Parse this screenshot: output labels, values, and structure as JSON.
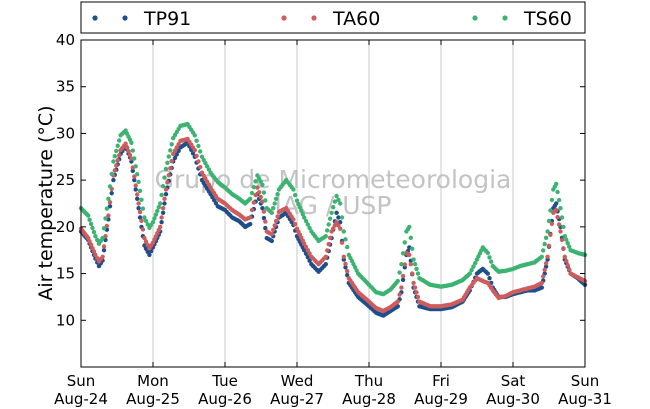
{
  "chart_data": {
    "type": "scatter",
    "ylabel": "Air temperature (°C)",
    "xlabel": "",
    "xlim": [
      0,
      7
    ],
    "ylim": [
      5,
      40
    ],
    "yticks": [
      10,
      15,
      20,
      25,
      30,
      35,
      40
    ],
    "xticks": [
      {
        "x": 0,
        "day": "Sun",
        "date": "Aug-24"
      },
      {
        "x": 1,
        "day": "Mon",
        "date": "Aug-25"
      },
      {
        "x": 2,
        "day": "Tue",
        "date": "Aug-26"
      },
      {
        "x": 3,
        "day": "Wed",
        "date": "Aug-27"
      },
      {
        "x": 4,
        "day": "Thu",
        "date": "Aug-28"
      },
      {
        "x": 5,
        "day": "Fri",
        "date": "Aug-29"
      },
      {
        "x": 6,
        "day": "Sat",
        "date": "Aug-30"
      },
      {
        "x": 7,
        "day": "Sun",
        "date": "Aug-31"
      }
    ],
    "grid": "vertical",
    "legend_position": "top",
    "watermark": [
      "Grupo de Micrometeorologia",
      "IAG / USP"
    ],
    "series": [
      {
        "name": "TP91",
        "color": "#1f4e8c",
        "points": [
          [
            0.0,
            19.5
          ],
          [
            0.1,
            18.6
          ],
          [
            0.2,
            16.6
          ],
          [
            0.25,
            15.8
          ],
          [
            0.3,
            16.4
          ],
          [
            0.38,
            20.8
          ],
          [
            0.45,
            25.0
          ],
          [
            0.55,
            27.8
          ],
          [
            0.62,
            28.7
          ],
          [
            0.7,
            27.0
          ],
          [
            0.8,
            22.0
          ],
          [
            0.88,
            18.0
          ],
          [
            0.95,
            17.0
          ],
          [
            1.0,
            17.8
          ],
          [
            1.1,
            19.5
          ],
          [
            1.18,
            23.5
          ],
          [
            1.28,
            27.0
          ],
          [
            1.38,
            28.5
          ],
          [
            1.48,
            29.0
          ],
          [
            1.58,
            27.5
          ],
          [
            1.68,
            25.0
          ],
          [
            1.8,
            23.5
          ],
          [
            1.9,
            22.2
          ],
          [
            2.0,
            21.8
          ],
          [
            2.1,
            21.0
          ],
          [
            2.2,
            20.6
          ],
          [
            2.28,
            20.0
          ],
          [
            2.35,
            20.3
          ],
          [
            2.45,
            23.5
          ],
          [
            2.52,
            22.0
          ],
          [
            2.58,
            18.8
          ],
          [
            2.65,
            18.5
          ],
          [
            2.75,
            21.0
          ],
          [
            2.85,
            21.5
          ],
          [
            2.95,
            20.2
          ],
          [
            3.0,
            19.0
          ],
          [
            3.1,
            17.5
          ],
          [
            3.2,
            16.0
          ],
          [
            3.3,
            15.2
          ],
          [
            3.4,
            16.0
          ],
          [
            3.48,
            18.8
          ],
          [
            3.55,
            21.5
          ],
          [
            3.6,
            20.5
          ],
          [
            3.65,
            16.5
          ],
          [
            3.72,
            14.0
          ],
          [
            3.85,
            12.5
          ],
          [
            4.0,
            11.5
          ],
          [
            4.1,
            10.8
          ],
          [
            4.2,
            10.5
          ],
          [
            4.3,
            11.0
          ],
          [
            4.4,
            11.5
          ],
          [
            4.45,
            13.0
          ],
          [
            4.52,
            17.0
          ],
          [
            4.56,
            17.8
          ],
          [
            4.62,
            13.5
          ],
          [
            4.7,
            11.5
          ],
          [
            4.85,
            11.2
          ],
          [
            5.0,
            11.2
          ],
          [
            5.15,
            11.4
          ],
          [
            5.3,
            12.0
          ],
          [
            5.4,
            13.2
          ],
          [
            5.5,
            15.0
          ],
          [
            5.58,
            15.5
          ],
          [
            5.65,
            15.0
          ],
          [
            5.72,
            13.5
          ],
          [
            5.8,
            12.5
          ],
          [
            5.9,
            12.5
          ],
          [
            6.0,
            12.8
          ],
          [
            6.1,
            13.0
          ],
          [
            6.2,
            13.2
          ],
          [
            6.3,
            13.2
          ],
          [
            6.4,
            13.5
          ],
          [
            6.48,
            16.5
          ],
          [
            6.56,
            22.0
          ],
          [
            6.6,
            22.5
          ],
          [
            6.66,
            20.0
          ],
          [
            6.72,
            16.5
          ],
          [
            6.8,
            15.0
          ],
          [
            6.9,
            14.5
          ],
          [
            7.0,
            13.8
          ]
        ]
      },
      {
        "name": "TA60",
        "color": "#cd5c5c",
        "points": [
          [
            0.0,
            19.8
          ],
          [
            0.1,
            18.8
          ],
          [
            0.2,
            17.0
          ],
          [
            0.25,
            16.3
          ],
          [
            0.3,
            16.8
          ],
          [
            0.38,
            21.2
          ],
          [
            0.45,
            25.5
          ],
          [
            0.55,
            28.2
          ],
          [
            0.62,
            28.9
          ],
          [
            0.7,
            27.3
          ],
          [
            0.8,
            22.5
          ],
          [
            0.88,
            18.8
          ],
          [
            0.95,
            17.7
          ],
          [
            1.0,
            18.3
          ],
          [
            1.1,
            20.0
          ],
          [
            1.18,
            24.0
          ],
          [
            1.28,
            27.8
          ],
          [
            1.38,
            29.2
          ],
          [
            1.48,
            29.4
          ],
          [
            1.58,
            28.2
          ],
          [
            1.68,
            25.8
          ],
          [
            1.8,
            24.2
          ],
          [
            1.9,
            23.0
          ],
          [
            2.0,
            22.5
          ],
          [
            2.1,
            21.8
          ],
          [
            2.2,
            21.3
          ],
          [
            2.28,
            20.8
          ],
          [
            2.35,
            21.0
          ],
          [
            2.45,
            24.2
          ],
          [
            2.52,
            22.7
          ],
          [
            2.58,
            19.5
          ],
          [
            2.65,
            19.2
          ],
          [
            2.75,
            21.6
          ],
          [
            2.85,
            22.0
          ],
          [
            2.95,
            20.8
          ],
          [
            3.0,
            19.8
          ],
          [
            3.1,
            18.2
          ],
          [
            3.2,
            16.8
          ],
          [
            3.3,
            16.0
          ],
          [
            3.4,
            16.8
          ],
          [
            3.48,
            19.5
          ],
          [
            3.55,
            20.5
          ],
          [
            3.6,
            19.8
          ],
          [
            3.65,
            16.8
          ],
          [
            3.72,
            14.5
          ],
          [
            3.85,
            13.0
          ],
          [
            4.0,
            12.0
          ],
          [
            4.1,
            11.3
          ],
          [
            4.2,
            11.0
          ],
          [
            4.3,
            11.4
          ],
          [
            4.4,
            12.0
          ],
          [
            4.45,
            13.5
          ],
          [
            4.52,
            17.2
          ],
          [
            4.56,
            17.0
          ],
          [
            4.62,
            14.0
          ],
          [
            4.7,
            12.0
          ],
          [
            4.85,
            11.5
          ],
          [
            5.0,
            11.5
          ],
          [
            5.15,
            11.7
          ],
          [
            5.3,
            12.2
          ],
          [
            5.4,
            13.5
          ],
          [
            5.5,
            14.5
          ],
          [
            5.58,
            14.2
          ],
          [
            5.65,
            14.0
          ],
          [
            5.72,
            13.2
          ],
          [
            5.8,
            12.4
          ],
          [
            5.9,
            12.6
          ],
          [
            6.0,
            13.0
          ],
          [
            6.1,
            13.2
          ],
          [
            6.2,
            13.4
          ],
          [
            6.3,
            13.6
          ],
          [
            6.4,
            14.0
          ],
          [
            6.48,
            16.8
          ],
          [
            6.56,
            21.5
          ],
          [
            6.6,
            21.8
          ],
          [
            6.66,
            19.5
          ],
          [
            6.72,
            16.8
          ],
          [
            6.8,
            15.0
          ],
          [
            6.9,
            14.6
          ],
          [
            7.0,
            14.2
          ]
        ]
      },
      {
        "name": "TS60",
        "color": "#3cb371",
        "points": [
          [
            0.0,
            22.0
          ],
          [
            0.1,
            21.2
          ],
          [
            0.2,
            19.0
          ],
          [
            0.25,
            18.2
          ],
          [
            0.3,
            18.8
          ],
          [
            0.38,
            23.0
          ],
          [
            0.45,
            27.0
          ],
          [
            0.55,
            29.8
          ],
          [
            0.62,
            30.3
          ],
          [
            0.7,
            29.0
          ],
          [
            0.8,
            24.8
          ],
          [
            0.88,
            21.0
          ],
          [
            0.95,
            19.9
          ],
          [
            1.0,
            20.5
          ],
          [
            1.1,
            22.5
          ],
          [
            1.18,
            26.2
          ],
          [
            1.28,
            29.5
          ],
          [
            1.38,
            30.8
          ],
          [
            1.48,
            31.0
          ],
          [
            1.58,
            29.8
          ],
          [
            1.68,
            27.5
          ],
          [
            1.8,
            25.8
          ],
          [
            1.9,
            24.8
          ],
          [
            2.0,
            24.2
          ],
          [
            2.1,
            23.5
          ],
          [
            2.2,
            23.0
          ],
          [
            2.28,
            22.5
          ],
          [
            2.35,
            23.0
          ],
          [
            2.45,
            25.5
          ],
          [
            2.52,
            24.5
          ],
          [
            2.58,
            22.0
          ],
          [
            2.65,
            21.5
          ],
          [
            2.75,
            24.0
          ],
          [
            2.85,
            25.0
          ],
          [
            2.95,
            24.0
          ],
          [
            3.0,
            22.8
          ],
          [
            3.1,
            21.0
          ],
          [
            3.2,
            19.5
          ],
          [
            3.3,
            18.5
          ],
          [
            3.4,
            19.0
          ],
          [
            3.48,
            21.5
          ],
          [
            3.55,
            23.3
          ],
          [
            3.6,
            22.5
          ],
          [
            3.65,
            19.5
          ],
          [
            3.72,
            17.0
          ],
          [
            3.85,
            15.0
          ],
          [
            4.0,
            13.8
          ],
          [
            4.1,
            13.0
          ],
          [
            4.2,
            12.8
          ],
          [
            4.3,
            13.3
          ],
          [
            4.4,
            14.2
          ],
          [
            4.45,
            16.0
          ],
          [
            4.52,
            19.5
          ],
          [
            4.56,
            20.0
          ],
          [
            4.62,
            16.5
          ],
          [
            4.7,
            14.5
          ],
          [
            4.85,
            13.8
          ],
          [
            5.0,
            13.6
          ],
          [
            5.15,
            13.8
          ],
          [
            5.3,
            14.3
          ],
          [
            5.4,
            15.0
          ],
          [
            5.5,
            16.5
          ],
          [
            5.58,
            17.8
          ],
          [
            5.65,
            17.2
          ],
          [
            5.72,
            15.8
          ],
          [
            5.8,
            15.2
          ],
          [
            5.9,
            15.3
          ],
          [
            6.0,
            15.5
          ],
          [
            6.1,
            15.8
          ],
          [
            6.2,
            16.0
          ],
          [
            6.3,
            16.2
          ],
          [
            6.4,
            16.8
          ],
          [
            6.48,
            19.5
          ],
          [
            6.56,
            24.0
          ],
          [
            6.6,
            24.6
          ],
          [
            6.66,
            22.0
          ],
          [
            6.72,
            19.0
          ],
          [
            6.8,
            17.5
          ],
          [
            6.9,
            17.2
          ],
          [
            7.0,
            17.0
          ]
        ]
      }
    ]
  }
}
